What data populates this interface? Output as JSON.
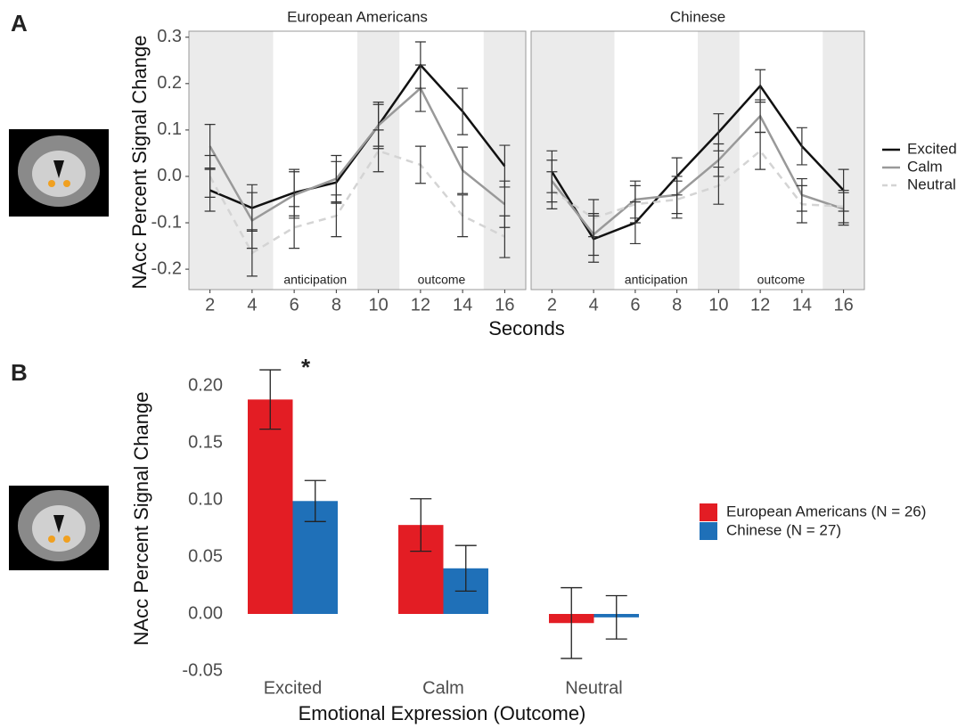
{
  "panel_labels": [
    "A",
    "B"
  ],
  "chart_data": [
    {
      "type": "line",
      "title": "European Americans",
      "y_label": "NAcc Percent Signal Change",
      "x_label": "Seconds",
      "x": [
        2,
        4,
        6,
        8,
        10,
        12,
        14,
        16
      ],
      "xlim": [
        1,
        17
      ],
      "xticks": [
        2,
        4,
        6,
        8,
        10,
        12,
        14,
        16
      ],
      "ylim": [
        -0.244,
        0.313
      ],
      "yticks": [
        0.3,
        0.2,
        0.1,
        {
          "value": 0,
          "label": "0.0"
        },
        -0.1,
        -0.2
      ],
      "shaded": [
        [
          1,
          5
        ],
        [
          9,
          11
        ],
        [
          15,
          17
        ]
      ],
      "annotations": [
        "anticipation",
        "outcome"
      ],
      "series": [
        {
          "name": "Excited",
          "color": "#111111",
          "dash": false,
          "values": [
            -0.03,
            -0.068,
            -0.035,
            -0.013,
            0.11,
            0.24,
            0.14,
            0.022
          ],
          "errors": [
            0.045,
            0.05,
            0.05,
            0.045,
            0.045,
            0.05,
            0.05,
            0.045
          ]
        },
        {
          "name": "Calm",
          "color": "#999999",
          "dash": false,
          "values": [
            0.065,
            -0.095,
            -0.04,
            -0.005,
            0.11,
            0.19,
            0.013,
            -0.06
          ],
          "errors": [
            0.047,
            0.06,
            0.05,
            0.05,
            0.05,
            0.05,
            0.05,
            0.05
          ]
        },
        {
          "name": "Neutral",
          "color": "#d4d4d4",
          "dash": true,
          "values": [
            0.0,
            -0.165,
            -0.11,
            -0.085,
            0.055,
            0.025,
            -0.085,
            -0.13
          ],
          "errors": [
            0.045,
            0.05,
            0.045,
            0.045,
            0.045,
            0.04,
            0.045,
            0.045
          ]
        }
      ]
    },
    {
      "type": "line",
      "title": "Chinese",
      "x": [
        2,
        4,
        6,
        8,
        10,
        12,
        14,
        16
      ],
      "xlim": [
        1,
        17
      ],
      "xticks": [
        2,
        4,
        6,
        8,
        10,
        12,
        14,
        16
      ],
      "ylim": [
        -0.244,
        0.313
      ],
      "shaded": [
        [
          1,
          5
        ],
        [
          9,
          11
        ],
        [
          15,
          17
        ]
      ],
      "annotations": [
        "anticipation",
        "outcome"
      ],
      "series": [
        {
          "color": "#111111",
          "dash": false,
          "values": [
            0.01,
            -0.135,
            -0.1,
            0.0,
            0.095,
            0.195,
            0.065,
            -0.03
          ],
          "errors": [
            0.045,
            0.05,
            0.045,
            0.04,
            0.04,
            0.035,
            0.04,
            0.045
          ]
        },
        {
          "color": "#999999",
          "dash": false,
          "values": [
            -0.01,
            -0.125,
            -0.05,
            -0.04,
            0.035,
            0.13,
            -0.04,
            -0.07
          ],
          "errors": [
            0.045,
            0.045,
            0.04,
            0.04,
            0.035,
            0.035,
            0.035,
            0.035
          ]
        },
        {
          "color": "#d4d4d4",
          "dash": true,
          "values": [
            -0.03,
            -0.09,
            -0.06,
            -0.05,
            -0.02,
            0.055,
            -0.06,
            -0.065
          ],
          "errors": [
            0.04,
            0.04,
            0.04,
            0.04,
            0.04,
            0.04,
            0.04,
            0.035
          ]
        }
      ]
    },
    {
      "type": "bar",
      "y_label": "NAcc Percent Signal Change",
      "x_label": "Emotional Expression (Outcome)",
      "categories": [
        "Excited",
        "Calm",
        "Neutral"
      ],
      "ylim": [
        -0.06,
        0.22
      ],
      "yticks": [
        {
          "value": 0.2,
          "label": "0.20"
        },
        0.15,
        {
          "value": 0.1,
          "label": "0.10"
        },
        0.05,
        {
          "value": 0,
          "label": "0.00"
        },
        -0.05
      ],
      "annotations": [
        "*"
      ],
      "series": [
        {
          "name": "European Americans (N = 26)",
          "color": "#e31d24",
          "values": [
            0.188,
            0.078,
            -0.008
          ],
          "errors": [
            0.026,
            0.023,
            0.031
          ]
        },
        {
          "name": "Chinese (N = 27)",
          "color": "#1f70b8",
          "values": [
            0.099,
            0.04,
            -0.003
          ],
          "errors": [
            0.018,
            0.02,
            0.019
          ]
        }
      ]
    }
  ]
}
